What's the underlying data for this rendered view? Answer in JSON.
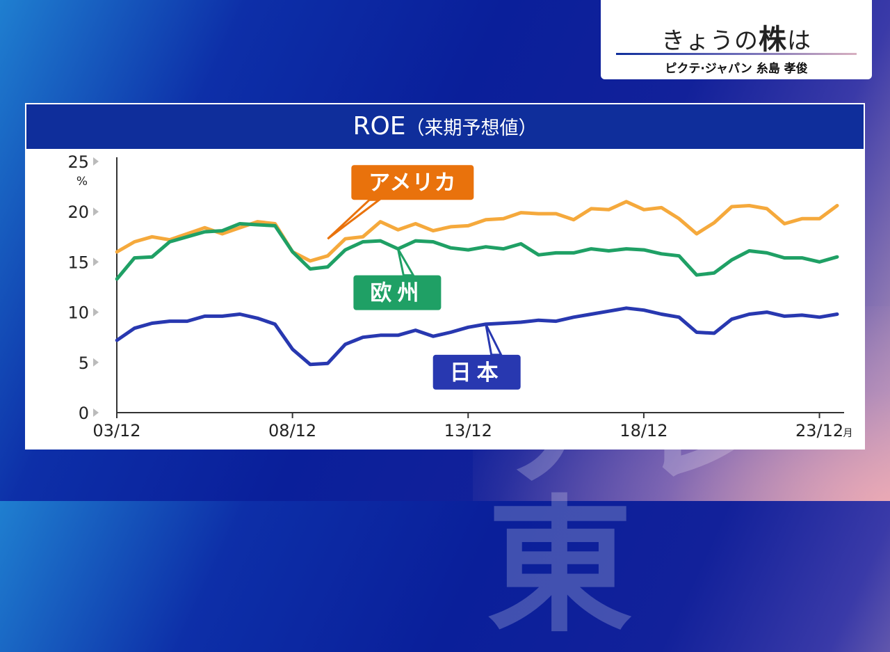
{
  "header": {
    "title_prefix": "きょうの",
    "title_bold": "株",
    "title_suffix": "は",
    "subtitle": "ピクテ·ジャパン 糸島 孝俊"
  },
  "panel": {
    "title_main": "ROE",
    "title_sub": "（来期予想値）"
  },
  "watermark": "テレ東",
  "colors": {
    "america": "#f5a93c",
    "europe": "#1fa065",
    "japan": "#2838b0",
    "america_label_bg": "#e9720c",
    "europe_label_bg": "#1fa065",
    "japan_label_bg": "#2838b0",
    "title_bar": "#0f2e9b"
  },
  "chart_data": {
    "type": "line",
    "title": "ROE（来期予想値）",
    "ylabel": "%",
    "xlabel": "",
    "ylim": [
      0,
      25
    ],
    "yticks": [
      "0",
      "5",
      "10",
      "15",
      "20",
      "25"
    ],
    "x_unit": "月",
    "x_range": [
      2003.9167,
      2024.5
    ],
    "xticks": [
      {
        "label": "03/12",
        "value": 2003.9167
      },
      {
        "label": "08/12",
        "value": 2008.9167
      },
      {
        "label": "13/12",
        "value": 2013.9167
      },
      {
        "label": "18/12",
        "value": 2018.9167
      },
      {
        "label": "23/12",
        "value": 2023.9167
      }
    ],
    "grid": false,
    "series": [
      {
        "name": "アメリカ",
        "color_key": "america",
        "x": [
          2003.92,
          2004.42,
          2004.92,
          2005.42,
          2005.92,
          2006.42,
          2006.92,
          2007.42,
          2007.92,
          2008.42,
          2008.92,
          2009.42,
          2009.92,
          2010.42,
          2010.92,
          2011.42,
          2011.92,
          2012.42,
          2012.92,
          2013.42,
          2013.92,
          2014.42,
          2014.92,
          2015.42,
          2015.92,
          2016.42,
          2016.92,
          2017.42,
          2017.92,
          2018.42,
          2018.92,
          2019.42,
          2019.92,
          2020.42,
          2020.92,
          2021.42,
          2021.92,
          2022.42,
          2022.92,
          2023.42,
          2023.92,
          2024.42
        ],
        "y": [
          16.0,
          17.0,
          17.5,
          17.2,
          17.8,
          18.4,
          17.8,
          18.4,
          19.0,
          18.8,
          16.0,
          15.1,
          15.6,
          17.3,
          17.5,
          19.0,
          18.2,
          18.8,
          18.1,
          18.5,
          18.6,
          19.2,
          19.3,
          19.9,
          19.8,
          19.8,
          19.2,
          20.3,
          20.2,
          21.0,
          20.2,
          20.4,
          19.3,
          17.8,
          18.9,
          20.5,
          20.6,
          20.3,
          18.8,
          19.3,
          19.3,
          20.6
        ]
      },
      {
        "name": "欧州",
        "color_key": "europe",
        "x": [
          2003.92,
          2004.42,
          2004.92,
          2005.42,
          2005.92,
          2006.42,
          2006.92,
          2007.42,
          2007.92,
          2008.42,
          2008.92,
          2009.42,
          2009.92,
          2010.42,
          2010.92,
          2011.42,
          2011.92,
          2012.42,
          2012.92,
          2013.42,
          2013.92,
          2014.42,
          2014.92,
          2015.42,
          2015.92,
          2016.42,
          2016.92,
          2017.42,
          2017.92,
          2018.42,
          2018.92,
          2019.42,
          2019.92,
          2020.42,
          2020.92,
          2021.42,
          2021.92,
          2022.42,
          2022.92,
          2023.42,
          2023.92,
          2024.42
        ],
        "y": [
          13.3,
          15.4,
          15.5,
          17.0,
          17.5,
          18.0,
          18.1,
          18.8,
          18.7,
          18.6,
          16.0,
          14.3,
          14.5,
          16.2,
          17.0,
          17.1,
          16.3,
          17.1,
          17.0,
          16.4,
          16.2,
          16.5,
          16.3,
          16.8,
          15.7,
          15.9,
          15.9,
          16.3,
          16.1,
          16.3,
          16.2,
          15.8,
          15.6,
          13.7,
          13.9,
          15.2,
          16.1,
          15.9,
          15.4,
          15.4,
          15.0,
          15.5
        ]
      },
      {
        "name": "日本",
        "color_key": "japan",
        "x": [
          2003.92,
          2004.42,
          2004.92,
          2005.42,
          2005.92,
          2006.42,
          2006.92,
          2007.42,
          2007.92,
          2008.42,
          2008.92,
          2009.42,
          2009.92,
          2010.42,
          2010.92,
          2011.42,
          2011.92,
          2012.42,
          2012.92,
          2013.42,
          2013.92,
          2014.42,
          2014.92,
          2015.42,
          2015.92,
          2016.42,
          2016.92,
          2017.42,
          2017.92,
          2018.42,
          2018.92,
          2019.42,
          2019.92,
          2020.42,
          2020.92,
          2021.42,
          2021.92,
          2022.42,
          2022.92,
          2023.42,
          2023.92,
          2024.42
        ],
        "y": [
          7.2,
          8.4,
          8.9,
          9.1,
          9.1,
          9.6,
          9.6,
          9.8,
          9.4,
          8.8,
          6.3,
          4.8,
          4.9,
          6.8,
          7.5,
          7.7,
          7.7,
          8.2,
          7.6,
          8.0,
          8.5,
          8.8,
          8.9,
          9.0,
          9.2,
          9.1,
          9.5,
          9.8,
          10.1,
          10.4,
          10.2,
          9.8,
          9.5,
          8.0,
          7.9,
          9.3,
          9.8,
          10.0,
          9.6,
          9.7,
          9.5,
          9.8
        ]
      }
    ],
    "labels": [
      {
        "text": "アメリカ",
        "series": "アメリカ",
        "bg_key": "america_label_bg",
        "anchor_x": 2009.92,
        "anchor_y": 17.3
      },
      {
        "text": "欧州",
        "series": "欧州",
        "bg_key": "europe_label_bg",
        "anchor_x": 2011.92,
        "anchor_y": 16.3
      },
      {
        "text": "日本",
        "series": "日本",
        "bg_key": "japan_label_bg",
        "anchor_x": 2014.42,
        "anchor_y": 8.8
      }
    ]
  }
}
